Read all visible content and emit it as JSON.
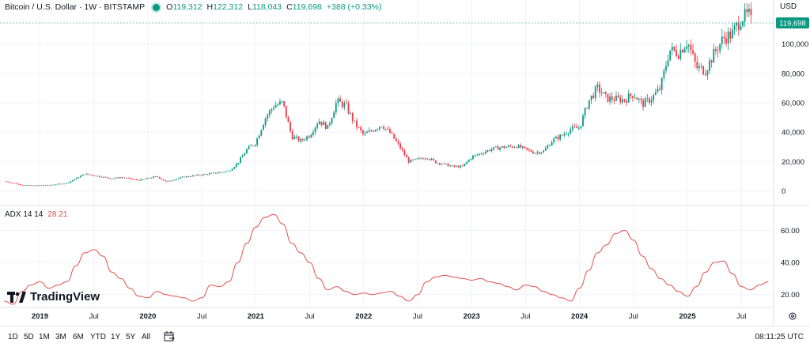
{
  "header": {
    "title": "Bitcoin / U.S. Dollar · 1W · BITSTAMP",
    "open_label": "O",
    "open": "119,312",
    "high_label": "H",
    "high": "122,312",
    "low_label": "L",
    "low": "118,043",
    "close_label": "C",
    "close": "119,698",
    "change": "+388 (+0.33%)",
    "currency": "USD",
    "last_price": "119,698"
  },
  "indicator": {
    "name": "ADX 14 14",
    "value": "28.21"
  },
  "brand": {
    "name": "TradingView"
  },
  "toolbar": {
    "timeframes": [
      "1D",
      "5D",
      "1M",
      "3M",
      "6M",
      "YTD",
      "1Y",
      "5Y",
      "All"
    ],
    "clock": "08:11:25 UTC"
  },
  "colors": {
    "up": "#089981",
    "down": "#f23645",
    "adx": "#e0504a",
    "grid": "#f0f3fa",
    "price_line": "#089981"
  },
  "chart_data": [
    {
      "type": "candlestick",
      "interval": "1W",
      "x_range": [
        "2018-09",
        "2025-08"
      ],
      "ylim": [
        -10000,
        130000
      ],
      "y_ticks": [
        0,
        20000,
        40000,
        60000,
        80000,
        100000
      ],
      "y_tick_labels": [
        "0",
        "20,000",
        "40,000",
        "60,000",
        "80,000",
        "100,000"
      ],
      "x_ticks": [
        "2019",
        "Jul",
        "2020",
        "Jul",
        "2021",
        "Jul",
        "2022",
        "Jul",
        "2023",
        "Jul",
        "2024",
        "Jul",
        "2025",
        "Jul"
      ],
      "grid": true,
      "close_points": [
        [
          "2018-09",
          6500
        ],
        [
          "2018-11",
          4000
        ],
        [
          "2018-12",
          3600
        ],
        [
          "2019-02",
          3900
        ],
        [
          "2019-04",
          5200
        ],
        [
          "2019-05",
          8500
        ],
        [
          "2019-06",
          11500
        ],
        [
          "2019-07",
          10500
        ],
        [
          "2019-09",
          8300
        ],
        [
          "2019-10",
          9200
        ],
        [
          "2019-12",
          7200
        ],
        [
          "2020-02",
          9800
        ],
        [
          "2020-03",
          6200
        ],
        [
          "2020-05",
          9500
        ],
        [
          "2020-07",
          11000
        ],
        [
          "2020-08",
          11700
        ],
        [
          "2020-10",
          13500
        ],
        [
          "2020-11",
          19000
        ],
        [
          "2020-12",
          28000
        ],
        [
          "2021-01",
          33000
        ],
        [
          "2021-02",
          49000
        ],
        [
          "2021-03",
          58000
        ],
        [
          "2021-04",
          60000
        ],
        [
          "2021-05",
          37000
        ],
        [
          "2021-06",
          34000
        ],
        [
          "2021-07",
          38000
        ],
        [
          "2021-08",
          48000
        ],
        [
          "2021-09",
          43000
        ],
        [
          "2021-10",
          61000
        ],
        [
          "2021-11",
          58000
        ],
        [
          "2021-12",
          46000
        ],
        [
          "2022-01",
          38000
        ],
        [
          "2022-03",
          45000
        ],
        [
          "2022-04",
          39000
        ],
        [
          "2022-05",
          30000
        ],
        [
          "2022-06",
          20000
        ],
        [
          "2022-08",
          23000
        ],
        [
          "2022-09",
          19500
        ],
        [
          "2022-11",
          16500
        ],
        [
          "2022-12",
          16600
        ],
        [
          "2023-01",
          23000
        ],
        [
          "2023-03",
          28000
        ],
        [
          "2023-04",
          29500
        ],
        [
          "2023-06",
          30500
        ],
        [
          "2023-08",
          26000
        ],
        [
          "2023-09",
          27000
        ],
        [
          "2023-10",
          34500
        ],
        [
          "2023-11",
          37500
        ],
        [
          "2023-12",
          42000
        ],
        [
          "2024-01",
          43000
        ],
        [
          "2024-02",
          61000
        ],
        [
          "2024-03",
          70000
        ],
        [
          "2024-04",
          63000
        ],
        [
          "2024-06",
          62000
        ],
        [
          "2024-07",
          66000
        ],
        [
          "2024-08",
          59000
        ],
        [
          "2024-09",
          63000
        ],
        [
          "2024-10",
          70000
        ],
        [
          "2024-11",
          96000
        ],
        [
          "2024-12",
          94000
        ],
        [
          "2025-01",
          102000
        ],
        [
          "2025-02",
          84000
        ],
        [
          "2025-03",
          82000
        ],
        [
          "2025-04",
          94000
        ],
        [
          "2025-05",
          104000
        ],
        [
          "2025-06",
          107000
        ],
        [
          "2025-07",
          118000
        ],
        [
          "2025-08",
          119698
        ]
      ]
    },
    {
      "type": "line",
      "name": "ADX 14 14",
      "ylim": [
        12,
        75
      ],
      "y_ticks": [
        20,
        40,
        60
      ],
      "y_tick_labels": [
        "20.00",
        "40.00",
        "60.00"
      ],
      "grid": true,
      "points": [
        [
          "2018-09",
          16
        ],
        [
          "2018-10",
          14
        ],
        [
          "2018-11",
          22
        ],
        [
          "2018-12",
          26
        ],
        [
          "2019-01",
          28
        ],
        [
          "2019-02",
          24
        ],
        [
          "2019-03",
          26
        ],
        [
          "2019-04",
          28
        ],
        [
          "2019-05",
          38
        ],
        [
          "2019-06",
          46
        ],
        [
          "2019-07",
          48
        ],
        [
          "2019-08",
          44
        ],
        [
          "2019-09",
          34
        ],
        [
          "2019-10",
          30
        ],
        [
          "2019-11",
          24
        ],
        [
          "2019-12",
          19
        ],
        [
          "2020-01",
          18
        ],
        [
          "2020-02",
          22
        ],
        [
          "2020-03",
          20
        ],
        [
          "2020-04",
          19
        ],
        [
          "2020-05",
          18
        ],
        [
          "2020-06",
          16
        ],
        [
          "2020-07",
          18
        ],
        [
          "2020-08",
          26
        ],
        [
          "2020-09",
          25
        ],
        [
          "2020-10",
          28
        ],
        [
          "2020-11",
          40
        ],
        [
          "2020-12",
          52
        ],
        [
          "2021-01",
          62
        ],
        [
          "2021-02",
          68
        ],
        [
          "2021-03",
          70
        ],
        [
          "2021-04",
          64
        ],
        [
          "2021-05",
          52
        ],
        [
          "2021-06",
          46
        ],
        [
          "2021-07",
          40
        ],
        [
          "2021-08",
          30
        ],
        [
          "2021-09",
          23
        ],
        [
          "2021-10",
          25
        ],
        [
          "2021-11",
          22
        ],
        [
          "2021-12",
          20
        ],
        [
          "2022-01",
          21
        ],
        [
          "2022-02",
          20
        ],
        [
          "2022-03",
          21
        ],
        [
          "2022-04",
          22
        ],
        [
          "2022-05",
          19
        ],
        [
          "2022-06",
          16
        ],
        [
          "2022-07",
          20
        ],
        [
          "2022-08",
          28
        ],
        [
          "2022-09",
          31
        ],
        [
          "2022-10",
          32
        ],
        [
          "2022-11",
          31
        ],
        [
          "2022-12",
          30
        ],
        [
          "2023-01",
          29
        ],
        [
          "2023-02",
          30
        ],
        [
          "2023-03",
          28
        ],
        [
          "2023-04",
          27
        ],
        [
          "2023-05",
          25
        ],
        [
          "2023-06",
          23
        ],
        [
          "2023-07",
          26
        ],
        [
          "2023-08",
          25
        ],
        [
          "2023-09",
          22
        ],
        [
          "2023-10",
          20
        ],
        [
          "2023-11",
          18
        ],
        [
          "2023-12",
          16
        ],
        [
          "2024-01",
          24
        ],
        [
          "2024-02",
          35
        ],
        [
          "2024-03",
          46
        ],
        [
          "2024-04",
          51
        ],
        [
          "2024-05",
          58
        ],
        [
          "2024-06",
          60
        ],
        [
          "2024-07",
          54
        ],
        [
          "2024-08",
          44
        ],
        [
          "2024-09",
          36
        ],
        [
          "2024-10",
          30
        ],
        [
          "2024-11",
          26
        ],
        [
          "2024-12",
          22
        ],
        [
          "2025-01",
          19
        ],
        [
          "2025-02",
          25
        ],
        [
          "2025-03",
          34
        ],
        [
          "2025-04",
          40
        ],
        [
          "2025-05",
          41
        ],
        [
          "2025-06",
          33
        ],
        [
          "2025-07",
          25
        ],
        [
          "2025-08",
          23
        ],
        [
          "2025-09",
          26
        ],
        [
          "2025-10",
          28
        ]
      ]
    }
  ]
}
